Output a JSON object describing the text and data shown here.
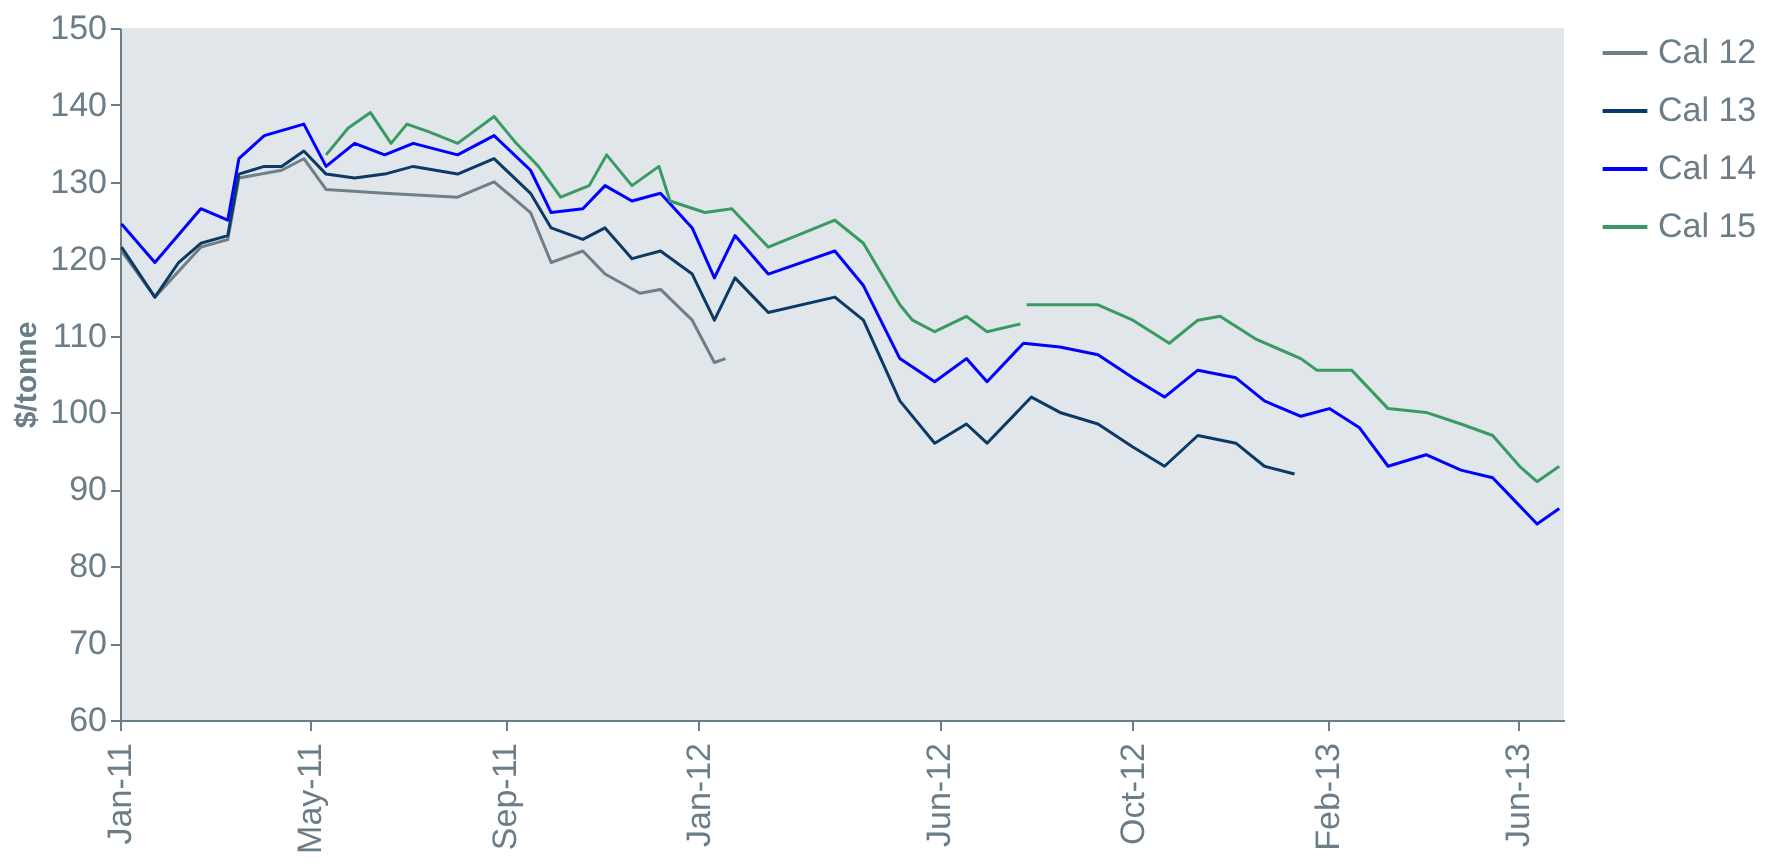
{
  "chart_data": {
    "type": "line",
    "ylabel": "$/tonne",
    "xlim": [
      "2011-01-01",
      "2013-06-30"
    ],
    "xticks": [
      {
        "value": "2011-01-01",
        "label": "Jan-11"
      },
      {
        "value": "2011-05-01",
        "label": "May-11"
      },
      {
        "value": "2011-09-01",
        "label": "Sep-11"
      },
      {
        "value": "2012-01-01",
        "label": "Jan-12"
      },
      {
        "value": "2012-06-01",
        "label": "Jun-12"
      },
      {
        "value": "2012-10-01",
        "label": "Oct-12"
      },
      {
        "value": "2013-02-01",
        "label": "Feb-13"
      },
      {
        "value": "2013-06-01",
        "label": "Jun-13"
      }
    ],
    "ylim": [
      60,
      150
    ],
    "yticks": [
      60,
      70,
      80,
      90,
      100,
      110,
      120,
      130,
      140,
      150
    ],
    "grid": false,
    "legend": "right",
    "marker": "none",
    "line_style": "solid",
    "series": [
      {
        "name": "Cal 12",
        "color": "#6f7f86",
        "x": [
          "2011-01-02",
          "2011-01-23",
          "2011-02-21",
          "2011-03-10",
          "2011-03-17",
          "2011-04-13",
          "2011-04-27",
          "2011-05-11",
          "2011-06-17",
          "2011-08-02",
          "2011-08-25",
          "2011-09-17",
          "2011-09-30",
          "2011-10-20",
          "2011-11-03",
          "2011-11-25",
          "2011-12-08",
          "2011-12-28",
          "2012-01-11",
          "2012-01-18"
        ],
        "values": [
          121,
          115,
          121.5,
          122.5,
          130.5,
          131.5,
          133,
          129,
          128.5,
          128,
          130,
          126,
          119.5,
          121,
          118,
          115.5,
          116,
          112,
          106.5,
          107
        ]
      },
      {
        "name": "Cal 13",
        "color": "#0b3a66",
        "x": [
          "2011-01-02",
          "2011-01-23",
          "2011-02-07",
          "2011-02-21",
          "2011-03-10",
          "2011-03-17",
          "2011-04-02",
          "2011-04-13",
          "2011-04-27",
          "2011-05-11",
          "2011-05-29",
          "2011-06-17",
          "2011-07-05",
          "2011-08-02",
          "2011-08-25",
          "2011-09-17",
          "2011-09-30",
          "2011-10-20",
          "2011-11-03",
          "2011-11-20",
          "2011-12-08",
          "2011-12-28",
          "2012-01-11",
          "2012-01-24",
          "2012-02-14",
          "2012-03-27",
          "2012-04-14",
          "2012-05-07",
          "2012-05-29",
          "2012-06-18",
          "2012-07-01",
          "2012-07-29",
          "2012-08-16",
          "2012-09-09",
          "2012-10-01",
          "2012-10-21",
          "2012-11-11",
          "2012-12-05",
          "2012-12-23",
          "2013-01-11"
        ],
        "values": [
          121.5,
          115,
          119.5,
          122,
          123,
          131,
          132,
          132,
          134,
          131,
          130.5,
          131,
          132,
          131,
          133,
          128.5,
          124,
          122.5,
          124,
          120,
          121,
          118,
          112,
          117.5,
          113,
          115,
          112,
          101.5,
          96,
          98.5,
          96,
          102,
          100,
          98.5,
          95.5,
          93,
          97,
          96,
          93,
          92
        ]
      },
      {
        "name": "Cal 14",
        "color": "#0000ff",
        "x": [
          "2011-01-02",
          "2011-01-23",
          "2011-02-21",
          "2011-03-10",
          "2011-03-17",
          "2011-04-02",
          "2011-04-27",
          "2011-05-11",
          "2011-05-29",
          "2011-06-17",
          "2011-07-05",
          "2011-08-02",
          "2011-08-25",
          "2011-09-17",
          "2011-09-30",
          "2011-10-20",
          "2011-11-03",
          "2011-11-20",
          "2011-12-08",
          "2011-12-28",
          "2012-01-11",
          "2012-01-24",
          "2012-02-14",
          "2012-03-27",
          "2012-04-14",
          "2012-05-07",
          "2012-05-29",
          "2012-06-18",
          "2012-07-01",
          "2012-07-24",
          "2012-08-16",
          "2012-09-09",
          "2012-10-01",
          "2012-10-21",
          "2012-11-11",
          "2012-12-05",
          "2012-12-23",
          "2013-01-15",
          "2013-02-02",
          "2013-02-21",
          "2013-03-11",
          "2013-04-04",
          "2013-04-26",
          "2013-05-16",
          "2013-05-30",
          "2013-06-13",
          "2013-06-27"
        ],
        "values": [
          124.5,
          119.5,
          126.5,
          125,
          133,
          136,
          137.5,
          132,
          135,
          133.5,
          135,
          133.5,
          136,
          131.5,
          126,
          126.5,
          129.5,
          127.5,
          128.5,
          124,
          117.5,
          123,
          118,
          121,
          116.5,
          107,
          104,
          107,
          104,
          109,
          108.5,
          107.5,
          104.5,
          102,
          105.5,
          104.5,
          101.5,
          99.5,
          100.5,
          98,
          93,
          94.5,
          92.5,
          91.5,
          88.5,
          85.5,
          87.5
        ]
      },
      {
        "name": "Cal 15",
        "color": "#3a9a64",
        "x": [
          "2011-05-11",
          "2011-05-25",
          "2011-06-08",
          "2011-06-21",
          "2011-07-01",
          "2011-07-15",
          "2011-08-02",
          "2011-08-25",
          "2011-09-08",
          "2011-09-22",
          "2011-10-06",
          "2011-10-24",
          "2011-11-04",
          "2011-11-20",
          "2011-12-07",
          "2011-12-14",
          "2012-01-05",
          "2012-01-22",
          "2012-02-14",
          "2012-03-27",
          "2012-04-14",
          "2012-05-07",
          "2012-05-15",
          "2012-05-29",
          "2012-06-18",
          "2012-07-01",
          "2012-07-22",
          "2012-07-24",
          "2012-07-26",
          "2012-08-16",
          "2012-09-09",
          "2012-10-01",
          "2012-10-24",
          "2012-11-11",
          "2012-11-25",
          "2012-12-18",
          "2013-01-15",
          "2013-01-25",
          "2013-02-16",
          "2013-03-11",
          "2013-04-04",
          "2013-04-26",
          "2013-05-16",
          "2013-06-02",
          "2013-06-13",
          "2013-06-27"
        ],
        "values": [
          133.5,
          137,
          139,
          135,
          137.5,
          136.5,
          135,
          138.5,
          135,
          132,
          128,
          129.5,
          133.5,
          129.5,
          132,
          127.5,
          126,
          126.5,
          121.5,
          125,
          122,
          114,
          112,
          110.5,
          112.5,
          110.5,
          111.5,
          null,
          114,
          114,
          114,
          112,
          109,
          112,
          112.5,
          109.5,
          107,
          105.5,
          105.5,
          100.5,
          100,
          98.5,
          97,
          93,
          91,
          93
        ]
      }
    ]
  }
}
